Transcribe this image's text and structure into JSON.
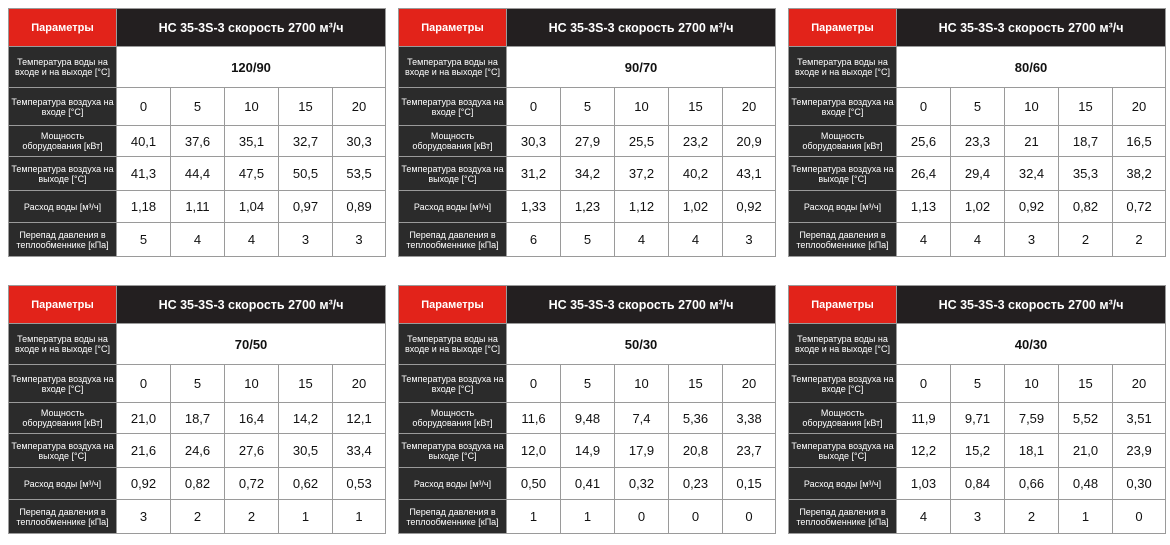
{
  "tables": [
    {
      "header_label": "Параметры",
      "title": "HC 35-3S-3 скорость 2700 м³/ч",
      "water_label": "Температура воды на входе и на выходе [°C]",
      "water_temp": "120/90",
      "rows": [
        {
          "label": "Температура воздуха на входе [°C]",
          "values": [
            "0",
            "5",
            "10",
            "15",
            "20"
          ]
        },
        {
          "label": "Мощность оборудования [кВт]",
          "values": [
            "40,1",
            "37,6",
            "35,1",
            "32,7",
            "30,3"
          ]
        },
        {
          "label": "Температура воздуха на выходе [°C]",
          "values": [
            "41,3",
            "44,4",
            "47,5",
            "50,5",
            "53,5"
          ]
        },
        {
          "label": "Расход воды [м³/ч]",
          "values": [
            "1,18",
            "1,11",
            "1,04",
            "0,97",
            "0,89"
          ]
        },
        {
          "label": "Перепад давления в теплообменнике [кПа]",
          "values": [
            "5",
            "4",
            "4",
            "3",
            "3"
          ]
        }
      ]
    },
    {
      "header_label": "Параметры",
      "title": "HC 35-3S-3 скорость 2700 м³/ч",
      "water_label": "Температура воды на входе и на выходе [°C]",
      "water_temp": "90/70",
      "rows": [
        {
          "label": "Температура воздуха на входе [°C]",
          "values": [
            "0",
            "5",
            "10",
            "15",
            "20"
          ]
        },
        {
          "label": "Мощность оборудования [кВт]",
          "values": [
            "30,3",
            "27,9",
            "25,5",
            "23,2",
            "20,9"
          ]
        },
        {
          "label": "Температура воздуха на выходе [°C]",
          "values": [
            "31,2",
            "34,2",
            "37,2",
            "40,2",
            "43,1"
          ]
        },
        {
          "label": "Расход воды [м³/ч]",
          "values": [
            "1,33",
            "1,23",
            "1,12",
            "1,02",
            "0,92"
          ]
        },
        {
          "label": "Перепад давления в теплообменнике [кПа]",
          "values": [
            "6",
            "5",
            "4",
            "4",
            "3"
          ]
        }
      ]
    },
    {
      "header_label": "Параметры",
      "title": "HC 35-3S-3 скорость 2700 м³/ч",
      "water_label": "Температура воды на входе и на выходе [°C]",
      "water_temp": "80/60",
      "rows": [
        {
          "label": "Температура воздуха на входе [°C]",
          "values": [
            "0",
            "5",
            "10",
            "15",
            "20"
          ]
        },
        {
          "label": "Мощность оборудования [кВт]",
          "values": [
            "25,6",
            "23,3",
            "21",
            "18,7",
            "16,5"
          ]
        },
        {
          "label": "Температура воздуха на выходе [°C]",
          "values": [
            "26,4",
            "29,4",
            "32,4",
            "35,3",
            "38,2"
          ]
        },
        {
          "label": "Расход воды [м³/ч]",
          "values": [
            "1,13",
            "1,02",
            "0,92",
            "0,82",
            "0,72"
          ]
        },
        {
          "label": "Перепад давления в теплообменнике [кПа]",
          "values": [
            "4",
            "4",
            "3",
            "2",
            "2"
          ]
        }
      ]
    },
    {
      "header_label": "Параметры",
      "title": "HC 35-3S-3 скорость 2700 м³/ч",
      "water_label": "Температура воды на входе и на выходе [°C]",
      "water_temp": "70/50",
      "rows": [
        {
          "label": "Температура воздуха на входе [°C]",
          "values": [
            "0",
            "5",
            "10",
            "15",
            "20"
          ]
        },
        {
          "label": "Мощность оборудования [кВт]",
          "values": [
            "21,0",
            "18,7",
            "16,4",
            "14,2",
            "12,1"
          ]
        },
        {
          "label": "Температура воздуха на выходе [°C]",
          "values": [
            "21,6",
            "24,6",
            "27,6",
            "30,5",
            "33,4"
          ]
        },
        {
          "label": "Расход воды [м³/ч]",
          "values": [
            "0,92",
            "0,82",
            "0,72",
            "0,62",
            "0,53"
          ]
        },
        {
          "label": "Перепад давления в теплообменнике [кПа]",
          "values": [
            "3",
            "2",
            "2",
            "1",
            "1"
          ]
        }
      ]
    },
    {
      "header_label": "Параметры",
      "title": "HC 35-3S-3 скорость 2700 м³/ч",
      "water_label": "Температура воды на входе и на выходе [°C]",
      "water_temp": "50/30",
      "rows": [
        {
          "label": "Температура воздуха на входе [°C]",
          "values": [
            "0",
            "5",
            "10",
            "15",
            "20"
          ]
        },
        {
          "label": "Мощность оборудования [кВт]",
          "values": [
            "11,6",
            "9,48",
            "7,4",
            "5,36",
            "3,38"
          ]
        },
        {
          "label": "Температура воздуха на выходе [°C]",
          "values": [
            "12,0",
            "14,9",
            "17,9",
            "20,8",
            "23,7"
          ]
        },
        {
          "label": "Расход воды [м³/ч]",
          "values": [
            "0,50",
            "0,41",
            "0,32",
            "0,23",
            "0,15"
          ]
        },
        {
          "label": "Перепад давления в теплообменнике [кПа]",
          "values": [
            "1",
            "1",
            "0",
            "0",
            "0"
          ]
        }
      ]
    },
    {
      "header_label": "Параметры",
      "title": "HC 35-3S-3 скорость 2700 м³/ч",
      "water_label": "Температура воды на входе и на выходе [°C]",
      "water_temp": "40/30",
      "rows": [
        {
          "label": "Температура воздуха на входе [°C]",
          "values": [
            "0",
            "5",
            "10",
            "15",
            "20"
          ]
        },
        {
          "label": "Мощность оборудования [кВт]",
          "values": [
            "11,9",
            "9,71",
            "7,59",
            "5,52",
            "3,51"
          ]
        },
        {
          "label": "Температура воздуха на выходе [°C]",
          "values": [
            "12,2",
            "15,2",
            "18,1",
            "21,0",
            "23,9"
          ]
        },
        {
          "label": "Расход воды [м³/ч]",
          "values": [
            "1,03",
            "0,84",
            "0,66",
            "0,48",
            "0,30"
          ]
        },
        {
          "label": "Перепад давления в теплообменнике [кПа]",
          "values": [
            "4",
            "3",
            "2",
            "1",
            "0"
          ]
        }
      ]
    }
  ]
}
